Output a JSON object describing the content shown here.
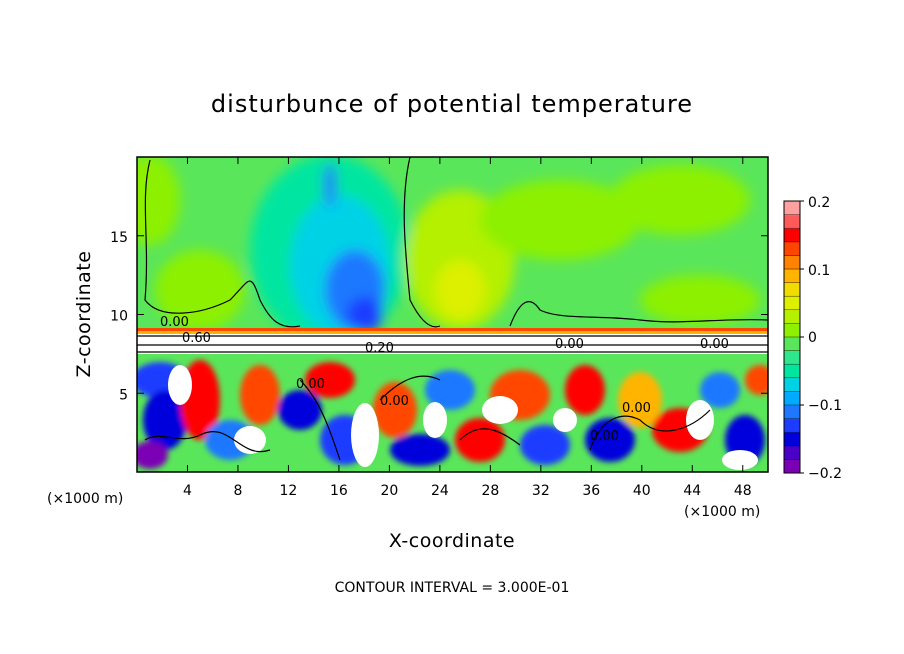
{
  "chart_data": {
    "type": "heatmap",
    "title": "disturbunce of potential temperature",
    "xlabel": "X-coordinate",
    "ylabel": "Z-coordinate",
    "x_unit": "(×1000 m)",
    "z_unit": "(×1000 m)",
    "xlim": [
      0,
      50
    ],
    "ylim": [
      0,
      20
    ],
    "x_ticks": [
      "4",
      "8",
      "12",
      "16",
      "20",
      "24",
      "28",
      "32",
      "36",
      "40",
      "44",
      "48"
    ],
    "y_ticks": [
      "5",
      "10",
      "15"
    ],
    "colorbar": {
      "range": [
        -0.2,
        0.2
      ],
      "tick_labels": [
        "0.2",
        "0.1",
        "0",
        "−0.1",
        "−0.2"
      ],
      "colors": [
        "#7b00b4",
        "#4b00c8",
        "#0000dc",
        "#1e3cff",
        "#1e78ff",
        "#00aaff",
        "#00d2e6",
        "#00e6a0",
        "#2ee68c",
        "#5ae65a",
        "#8cf000",
        "#b4f000",
        "#dcf000",
        "#f0dc00",
        "#ffb400",
        "#ff8200",
        "#ff4600",
        "#ff0000",
        "#ff5a5a",
        "#ffa0a0"
      ]
    },
    "contour_labels": [
      "0.00",
      "0.60",
      "0.00",
      "0.20",
      "0.00",
      "0.00",
      "0.00",
      "0.00",
      "0.00"
    ],
    "contour_note": "CONTOUR INTERVAL = 3.000E-01"
  }
}
